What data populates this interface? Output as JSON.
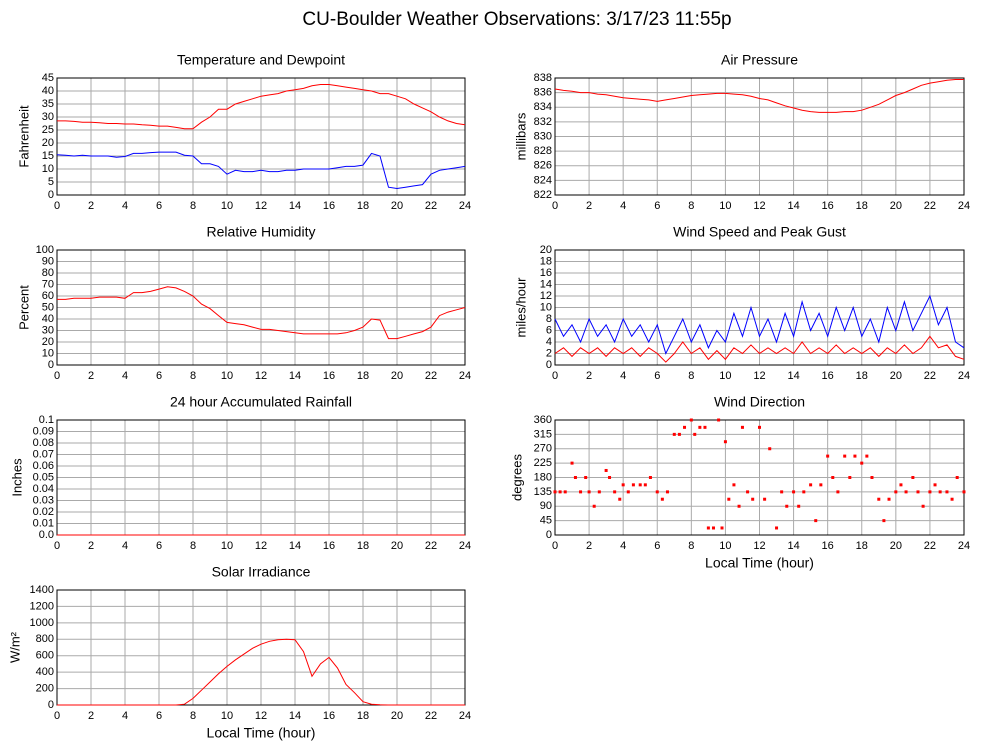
{
  "title": "CU-Boulder Weather Observations: 3/17/23 11:55p",
  "chart_data": [
    {
      "type": "line",
      "title": "Temperature and Dewpoint",
      "y_label": "Fahrenheit",
      "x": [
        0,
        0.5,
        1,
        1.5,
        2,
        2.5,
        3,
        3.5,
        4,
        4.5,
        5,
        5.5,
        6,
        6.5,
        7,
        7.5,
        8,
        8.5,
        9,
        9.5,
        10,
        10.5,
        11,
        11.5,
        12,
        12.5,
        13,
        13.5,
        14,
        14.5,
        15,
        15.5,
        16,
        16.5,
        17,
        17.5,
        18,
        18.5,
        19,
        19.5,
        20,
        20.5,
        21,
        21.5,
        22,
        22.5,
        23,
        23.5,
        24
      ],
      "series": [
        {
          "color": "#ff0000",
          "values": [
            28.5,
            28.5,
            28.3,
            28,
            28,
            27.8,
            27.5,
            27.5,
            27.3,
            27.3,
            27,
            26.8,
            26.5,
            26.5,
            26,
            25.5,
            25.5,
            28,
            30,
            33,
            33,
            35,
            36,
            37,
            38,
            38.5,
            39,
            40,
            40.5,
            41,
            42,
            42.5,
            42.5,
            42,
            41.5,
            41,
            40.5,
            40,
            39,
            39,
            38,
            37,
            35,
            33.5,
            32,
            30,
            28.5,
            27.5,
            27
          ]
        },
        {
          "color": "#0000ff",
          "values": [
            15.5,
            15.3,
            15,
            15.3,
            15,
            15,
            15,
            14.5,
            14.8,
            16,
            16,
            16.3,
            16.5,
            16.5,
            16.5,
            15.3,
            15,
            12,
            12,
            11,
            8,
            9.5,
            9,
            9,
            9.5,
            9,
            9,
            9.5,
            9.5,
            10,
            10,
            10,
            10,
            10.5,
            11,
            11,
            11.5,
            16,
            15,
            3,
            2.5,
            3,
            3.5,
            4,
            8,
            9.5,
            10,
            10.5,
            11
          ]
        }
      ],
      "xlim": [
        0,
        24
      ],
      "xticks": [
        0,
        2,
        4,
        6,
        8,
        10,
        12,
        14,
        16,
        18,
        20,
        22,
        24
      ],
      "ylim": [
        0,
        45
      ],
      "yticks": [
        0,
        5,
        10,
        15,
        20,
        25,
        30,
        35,
        40,
        45
      ],
      "grid": true
    },
    {
      "type": "line",
      "title": "Air Pressure",
      "y_label": "millibars",
      "x": [
        0,
        0.5,
        1,
        1.5,
        2,
        2.5,
        3,
        3.5,
        4,
        4.5,
        5,
        5.5,
        6,
        6.5,
        7,
        7.5,
        8,
        8.5,
        9,
        9.5,
        10,
        10.5,
        11,
        11.5,
        12,
        12.5,
        13,
        13.5,
        14,
        14.5,
        15,
        15.5,
        16,
        16.5,
        17,
        17.5,
        18,
        18.5,
        19,
        19.5,
        20,
        20.5,
        21,
        21.5,
        22,
        22.5,
        23,
        23.5,
        24
      ],
      "series": [
        {
          "color": "#ff0000",
          "values": [
            836.5,
            836.3,
            836.2,
            836,
            836,
            835.8,
            835.7,
            835.5,
            835.3,
            835.2,
            835.1,
            835,
            834.8,
            835,
            835.2,
            835.4,
            835.6,
            835.7,
            835.8,
            835.9,
            835.9,
            835.8,
            835.7,
            835.5,
            835.2,
            835,
            834.6,
            834.2,
            833.9,
            833.6,
            833.4,
            833.3,
            833.3,
            833.3,
            833.4,
            833.4,
            833.6,
            834,
            834.4,
            835,
            835.6,
            836,
            836.5,
            837,
            837.3,
            837.5,
            837.7,
            837.8,
            837.8
          ]
        }
      ],
      "xlim": [
        0,
        24
      ],
      "xticks": [
        0,
        2,
        4,
        6,
        8,
        10,
        12,
        14,
        16,
        18,
        20,
        22,
        24
      ],
      "ylim": [
        822,
        838
      ],
      "yticks": [
        822,
        824,
        826,
        828,
        830,
        832,
        834,
        836,
        838
      ],
      "grid": true
    },
    {
      "type": "line",
      "title": "Relative Humidity",
      "y_label": "Percent",
      "x": [
        0,
        0.5,
        1,
        1.5,
        2,
        2.5,
        3,
        3.5,
        4,
        4.5,
        5,
        5.5,
        6,
        6.5,
        7,
        7.5,
        8,
        8.5,
        9,
        9.5,
        10,
        10.5,
        11,
        11.5,
        12,
        12.5,
        13,
        13.5,
        14,
        14.5,
        15,
        15.5,
        16,
        16.5,
        17,
        17.5,
        18,
        18.5,
        19,
        19.5,
        20,
        20.5,
        21,
        21.5,
        22,
        22.5,
        23,
        23.5,
        24
      ],
      "series": [
        {
          "color": "#ff0000",
          "values": [
            57,
            57,
            58,
            58,
            58,
            59,
            59,
            59,
            58,
            63,
            63,
            64,
            66,
            68,
            67,
            64,
            60,
            53,
            49,
            43,
            37,
            36,
            35,
            33,
            31,
            31,
            30,
            29,
            28,
            27,
            27,
            27,
            27,
            27,
            28,
            30,
            33,
            40,
            39,
            23,
            23,
            25,
            27,
            29,
            33,
            43,
            46,
            48,
            50
          ]
        }
      ],
      "xlim": [
        0,
        24
      ],
      "xticks": [
        0,
        2,
        4,
        6,
        8,
        10,
        12,
        14,
        16,
        18,
        20,
        22,
        24
      ],
      "ylim": [
        0,
        100
      ],
      "yticks": [
        0,
        10,
        20,
        30,
        40,
        50,
        60,
        70,
        80,
        90,
        100
      ],
      "grid": true
    },
    {
      "type": "line",
      "title": "Wind Speed and Peak Gust",
      "y_label": "miles/hour",
      "x": [
        0,
        0.5,
        1,
        1.5,
        2,
        2.5,
        3,
        3.5,
        4,
        4.5,
        5,
        5.5,
        6,
        6.5,
        7,
        7.5,
        8,
        8.5,
        9,
        9.5,
        10,
        10.5,
        11,
        11.5,
        12,
        12.5,
        13,
        13.5,
        14,
        14.5,
        15,
        15.5,
        16,
        16.5,
        17,
        17.5,
        18,
        18.5,
        19,
        19.5,
        20,
        20.5,
        21,
        21.5,
        22,
        22.5,
        23,
        23.5,
        24
      ],
      "series": [
        {
          "color": "#0000ff",
          "values": [
            8,
            5,
            7,
            4,
            8,
            5,
            7,
            4,
            8,
            5,
            7,
            4,
            7,
            2,
            5,
            8,
            4,
            7,
            3,
            6,
            4,
            9,
            5,
            10,
            5,
            8,
            4,
            9,
            5,
            11,
            6,
            9,
            5,
            10,
            6,
            10,
            5,
            8,
            4,
            10,
            6,
            11,
            6,
            9,
            12,
            7,
            10,
            4,
            3
          ]
        },
        {
          "color": "#ff0000",
          "values": [
            2,
            3,
            1.5,
            3,
            2,
            3,
            1.5,
            3,
            2,
            3,
            1.5,
            3,
            2,
            0.5,
            2,
            4,
            2,
            3,
            1,
            2.5,
            1,
            3,
            2,
            3.5,
            2,
            3,
            2,
            3,
            2,
            4,
            2,
            3,
            2,
            3.5,
            2,
            3,
            2,
            3,
            1.5,
            3,
            2,
            3.5,
            2,
            3,
            5,
            3,
            3.5,
            1.5,
            1
          ]
        }
      ],
      "xlim": [
        0,
        24
      ],
      "xticks": [
        0,
        2,
        4,
        6,
        8,
        10,
        12,
        14,
        16,
        18,
        20,
        22,
        24
      ],
      "ylim": [
        0,
        20
      ],
      "yticks": [
        0,
        2,
        4,
        6,
        8,
        10,
        12,
        14,
        16,
        18,
        20
      ],
      "grid": true
    },
    {
      "type": "line",
      "title": "24 hour Accumulated Rainfall",
      "y_label": "Inches",
      "x": [
        0,
        24
      ],
      "series": [
        {
          "color": "#ff0000",
          "values": [
            0,
            0
          ]
        }
      ],
      "xlim": [
        0,
        24
      ],
      "xticks": [
        0,
        2,
        4,
        6,
        8,
        10,
        12,
        14,
        16,
        18,
        20,
        22,
        24
      ],
      "ylim": [
        0,
        0.1
      ],
      "yticks": [
        {
          "value": 0,
          "label": "0.0"
        },
        0.01,
        0.02,
        0.03,
        0.04,
        0.05,
        0.06,
        0.07,
        0.08,
        0.09,
        0.1
      ],
      "grid": true
    },
    {
      "type": "scatter",
      "title": "Wind Direction",
      "y_label": "degrees",
      "x_label": "Local Time (hour)",
      "x": [
        0,
        0.3,
        0.6,
        1,
        1.2,
        1.5,
        1.8,
        2,
        2.3,
        2.6,
        3,
        3.2,
        3.5,
        3.8,
        4,
        4.3,
        4.6,
        5,
        5.3,
        5.6,
        6,
        6.3,
        6.6,
        7,
        7.3,
        7.6,
        8,
        8.2,
        8.5,
        8.8,
        9,
        9.3,
        9.6,
        9.8,
        10,
        10.2,
        10.5,
        10.8,
        11,
        11.3,
        11.6,
        12,
        12.3,
        12.6,
        13,
        13.3,
        13.6,
        14,
        14.3,
        14.6,
        15,
        15.3,
        15.6,
        16,
        16.3,
        16.6,
        17,
        17.3,
        17.6,
        18,
        18.3,
        18.6,
        19,
        19.3,
        19.6,
        20,
        20.3,
        20.6,
        21,
        21.3,
        21.6,
        22,
        22.3,
        22.6,
        23,
        23.3,
        23.6,
        24
      ],
      "series": [
        {
          "color": "#ff0000",
          "values": [
            135,
            135,
            135,
            225,
            180,
            135,
            180,
            135,
            90,
            135,
            202,
            180,
            135,
            112,
            157,
            135,
            157,
            157,
            157,
            180,
            135,
            112,
            135,
            315,
            315,
            337,
            360,
            315,
            337,
            337,
            22,
            22,
            360,
            22,
            292,
            112,
            157,
            90,
            337,
            135,
            112,
            337,
            112,
            270,
            22,
            135,
            90,
            135,
            90,
            135,
            157,
            45,
            157,
            247,
            180,
            135,
            247,
            180,
            247,
            225,
            247,
            180,
            112,
            45,
            112,
            135,
            157,
            135,
            180,
            135,
            90,
            135,
            157,
            135,
            135,
            112,
            180,
            135
          ]
        }
      ],
      "xlim": [
        0,
        24
      ],
      "xticks": [
        0,
        2,
        4,
        6,
        8,
        10,
        12,
        14,
        16,
        18,
        20,
        22,
        24
      ],
      "ylim": [
        0,
        360
      ],
      "yticks": [
        0,
        45,
        90,
        135,
        180,
        225,
        270,
        315,
        360
      ],
      "grid": true
    },
    {
      "type": "line",
      "title": "Solar Irradiance",
      "y_label": "W/m²",
      "x_label": "Local Time (hour)",
      "x": [
        0,
        0.5,
        1,
        1.5,
        2,
        2.5,
        3,
        3.5,
        4,
        4.5,
        5,
        5.5,
        6,
        6.5,
        7,
        7.5,
        8,
        8.5,
        9,
        9.5,
        10,
        10.5,
        11,
        11.5,
        12,
        12.5,
        13,
        13.5,
        14,
        14.5,
        15,
        15.5,
        16,
        16.5,
        17,
        17.5,
        18,
        18.5,
        19,
        19.5,
        20,
        20.5,
        21,
        21.5,
        22,
        22.5,
        23,
        23.5,
        24
      ],
      "series": [
        {
          "color": "#ff0000",
          "values": [
            0,
            0,
            0,
            0,
            0,
            0,
            0,
            0,
            0,
            0,
            0,
            0,
            0,
            0,
            0,
            10,
            80,
            180,
            280,
            380,
            470,
            550,
            620,
            690,
            740,
            775,
            795,
            800,
            795,
            650,
            350,
            500,
            580,
            450,
            250,
            150,
            40,
            10,
            2,
            0,
            0,
            0,
            0,
            0,
            0,
            0,
            0,
            0,
            0
          ]
        }
      ],
      "xlim": [
        0,
        24
      ],
      "xticks": [
        0,
        2,
        4,
        6,
        8,
        10,
        12,
        14,
        16,
        18,
        20,
        22,
        24
      ],
      "ylim": [
        0,
        1400
      ],
      "yticks": [
        0,
        200,
        400,
        600,
        800,
        1000,
        1200,
        1400
      ],
      "grid": true
    }
  ]
}
